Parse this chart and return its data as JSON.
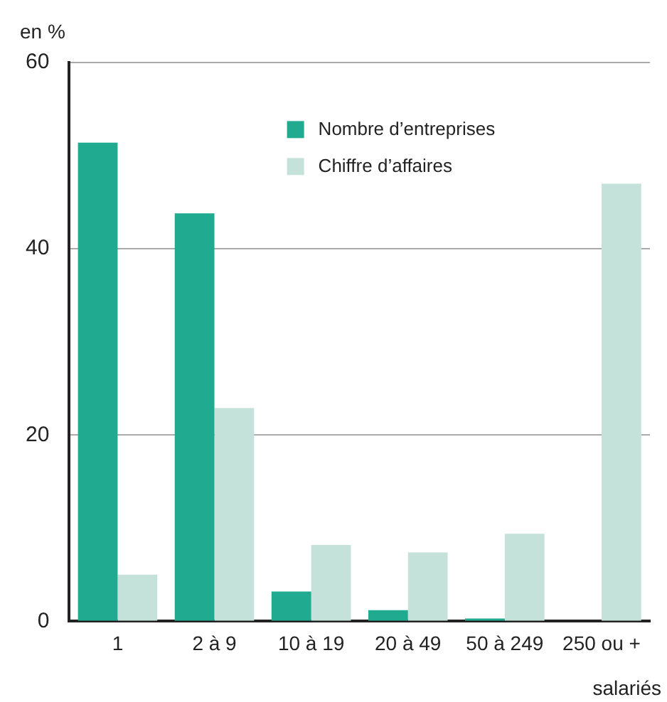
{
  "chart_data": {
    "type": "bar",
    "ylabel": "en %",
    "xlabel": "salariés",
    "categories": [
      "1",
      "2 à 9",
      "10 à 19",
      "20 à 49",
      "50 à 249",
      "250 ou +"
    ],
    "series": [
      {
        "name": "Nombre d’entreprises",
        "color": "#20ab90",
        "values": [
          51.4,
          43.8,
          3.2,
          1.2,
          0.3,
          0
        ]
      },
      {
        "name": "Chiffre d’affaires",
        "color": "#c5e2da",
        "values": [
          5.0,
          22.9,
          8.2,
          7.4,
          9.4,
          47.0
        ]
      }
    ],
    "ylim": [
      0,
      60
    ],
    "yticks": [
      0,
      20,
      40,
      60
    ],
    "grid": "y",
    "legend": "top"
  }
}
